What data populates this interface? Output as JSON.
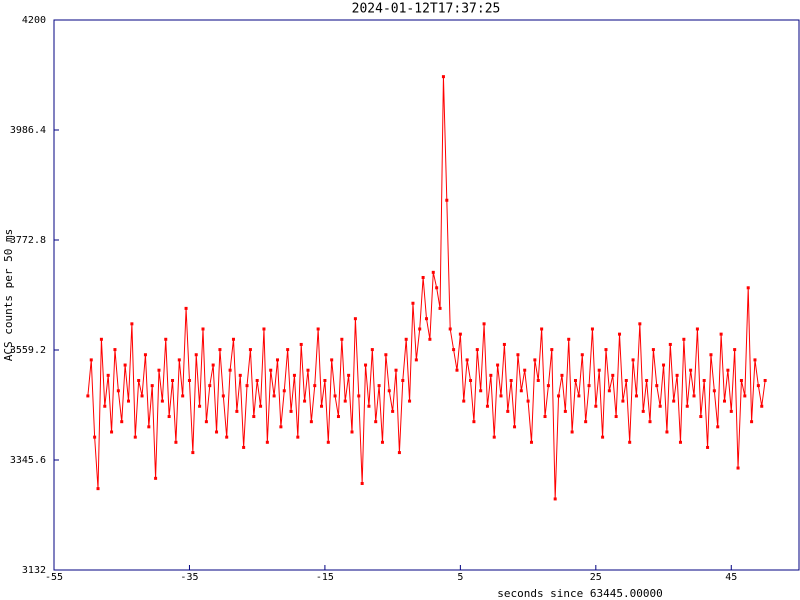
{
  "chart_data": {
    "type": "line",
    "title": "2024-01-12T17:37:25",
    "xlabel": "seconds since 63445.00000",
    "ylabel": "ACS counts per 50 ms",
    "xlim": [
      -55,
      55
    ],
    "xticks": [
      -55,
      -35,
      -15,
      5,
      25,
      45
    ],
    "ylim": [
      3132,
      4200
    ],
    "yticks": [
      3132,
      3345.6,
      3559.2,
      3772.8,
      3986.4,
      4200
    ],
    "grid": false,
    "series": [
      {
        "color": "#ff0000",
        "x": [
          -50,
          -49.5,
          -49,
          -48.5,
          -48,
          -47.5,
          -47,
          -46.5,
          -46,
          -45.5,
          -45,
          -44.5,
          -44,
          -43.5,
          -43,
          -42.5,
          -42,
          -41.5,
          -41,
          -40.5,
          -40,
          -39.5,
          -39,
          -38.5,
          -38,
          -37.5,
          -37,
          -36.5,
          -36,
          -35.5,
          -35,
          -34.5,
          -34,
          -33.5,
          -33,
          -32.5,
          -32,
          -31.5,
          -31,
          -30.5,
          -30,
          -29.5,
          -29,
          -28.5,
          -28,
          -27.5,
          -27,
          -26.5,
          -26,
          -25.5,
          -25,
          -24.5,
          -24,
          -23.5,
          -23,
          -22.5,
          -22,
          -21.5,
          -21,
          -20.5,
          -20,
          -19.5,
          -19,
          -18.5,
          -18,
          -17.5,
          -17,
          -16.5,
          -16,
          -15.5,
          -15,
          -14.5,
          -14,
          -13.5,
          -13,
          -12.5,
          -12,
          -11.5,
          -11,
          -10.5,
          -10,
          -9.5,
          -9,
          -8.5,
          -8,
          -7.5,
          -7,
          -6.5,
          -6,
          -5.5,
          -5,
          -4.5,
          -4,
          -3.5,
          -3,
          -2.5,
          -2,
          -1.5,
          -1,
          -0.5,
          0,
          0.5,
          1,
          1.5,
          2,
          2.5,
          3,
          3.5,
          4,
          4.5,
          5,
          5.5,
          6,
          6.5,
          7,
          7.5,
          8,
          8.5,
          9,
          9.5,
          10,
          10.5,
          11,
          11.5,
          12,
          12.5,
          13,
          13.5,
          14,
          14.5,
          15,
          15.5,
          16,
          16.5,
          17,
          17.5,
          18,
          18.5,
          19,
          19.5,
          20,
          20.5,
          21,
          21.5,
          22,
          22.5,
          23,
          23.5,
          24,
          24.5,
          25,
          25.5,
          26,
          26.5,
          27,
          27.5,
          28,
          28.5,
          29,
          29.5,
          30,
          30.5,
          31,
          31.5,
          32,
          32.5,
          33,
          33.5,
          34,
          34.5,
          35,
          35.5,
          36,
          36.5,
          37,
          37.5,
          38,
          38.5,
          39,
          39.5,
          40,
          40.5,
          41,
          41.5,
          42,
          42.5,
          43,
          43.5,
          44,
          44.5,
          45,
          45.5,
          46,
          46.5,
          47,
          47.5,
          48,
          48.5,
          49,
          49.5,
          50
        ],
        "values": [
          3470,
          3540,
          3390,
          3290,
          3580,
          3450,
          3510,
          3400,
          3560,
          3480,
          3420,
          3530,
          3460,
          3610,
          3390,
          3500,
          3470,
          3550,
          3410,
          3490,
          3310,
          3520,
          3460,
          3580,
          3430,
          3500,
          3380,
          3540,
          3470,
          3640,
          3500,
          3360,
          3550,
          3450,
          3600,
          3420,
          3490,
          3530,
          3400,
          3560,
          3470,
          3390,
          3520,
          3580,
          3440,
          3510,
          3370,
          3490,
          3560,
          3430,
          3500,
          3450,
          3600,
          3380,
          3520,
          3470,
          3540,
          3410,
          3480,
          3560,
          3440,
          3510,
          3390,
          3570,
          3460,
          3520,
          3420,
          3490,
          3600,
          3450,
          3500,
          3380,
          3540,
          3470,
          3430,
          3580,
          3460,
          3510,
          3400,
          3620,
          3470,
          3300,
          3530,
          3450,
          3560,
          3420,
          3490,
          3380,
          3550,
          3480,
          3440,
          3520,
          3360,
          3500,
          3580,
          3460,
          3650,
          3540,
          3600,
          3700,
          3620,
          3580,
          3710,
          3680,
          3640,
          4090,
          3850,
          3600,
          3560,
          3520,
          3590,
          3460,
          3540,
          3500,
          3420,
          3560,
          3480,
          3610,
          3450,
          3510,
          3390,
          3530,
          3470,
          3570,
          3440,
          3500,
          3410,
          3550,
          3480,
          3520,
          3460,
          3380,
          3540,
          3500,
          3600,
          3430,
          3490,
          3560,
          3270,
          3470,
          3510,
          3440,
          3580,
          3400,
          3500,
          3470,
          3550,
          3420,
          3490,
          3600,
          3450,
          3520,
          3390,
          3560,
          3480,
          3510,
          3430,
          3590,
          3460,
          3500,
          3380,
          3540,
          3470,
          3610,
          3440,
          3500,
          3420,
          3560,
          3490,
          3450,
          3530,
          3400,
          3570,
          3460,
          3510,
          3380,
          3580,
          3450,
          3520,
          3470,
          3600,
          3430,
          3500,
          3370,
          3550,
          3480,
          3410,
          3590,
          3460,
          3520,
          3440,
          3560,
          3330,
          3500,
          3470,
          3680,
          3420,
          3540,
          3490,
          3450,
          3500
        ]
      }
    ]
  }
}
